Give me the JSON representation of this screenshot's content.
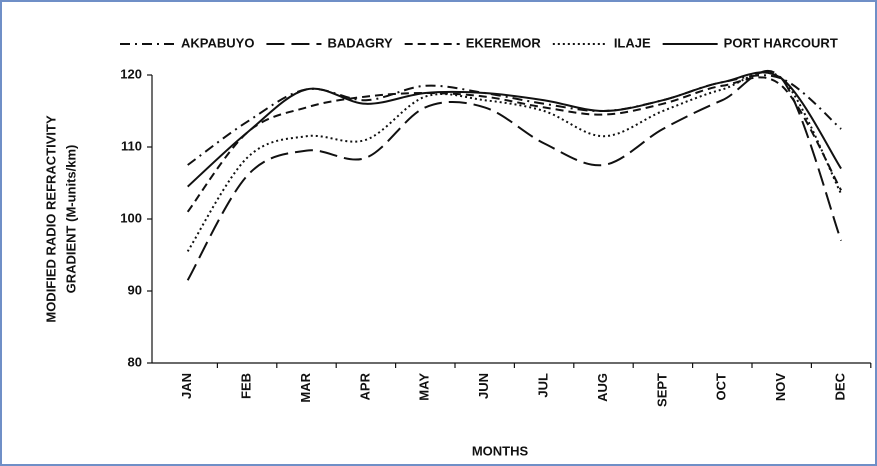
{
  "chart_data": {
    "type": "line",
    "y_label": [
      "MODIFIED  RADIO REFRACTIVITY",
      "GRADIENT  (M-units/km)"
    ],
    "x_label": "MONTHS",
    "categories": [
      "JAN",
      "FEB",
      "MAR",
      "APR",
      "MAY",
      "JUN",
      "JUL",
      "AUG",
      "SEPT",
      "OCT",
      "NOV",
      "DEC"
    ],
    "series": [
      {
        "name": "AKPABUYO",
        "color": "#111111",
        "dash": "10,5,2,5",
        "values": [
          107.5,
          113.5,
          118,
          116.5,
          118.5,
          117.5,
          116,
          115,
          116.5,
          119,
          119.5,
          112.5
        ]
      },
      {
        "name": "BADAGRY",
        "color": "#111111",
        "dash": "18,7",
        "values": [
          91.5,
          106,
          109.5,
          108.5,
          115.5,
          115.5,
          110.5,
          107.5,
          112.5,
          116.5,
          119.5,
          97
        ]
      },
      {
        "name": "EKEREMOR",
        "color": "#111111",
        "dash": "8,5",
        "values": [
          101,
          112,
          115.5,
          117,
          117.5,
          117,
          115.5,
          114.5,
          116,
          118.5,
          118.5,
          104
        ]
      },
      {
        "name": "ILAJE",
        "color": "#111111",
        "dash": "2,3",
        "values": [
          95.5,
          108.5,
          111.5,
          111,
          117,
          116.5,
          115,
          111.5,
          115,
          118,
          119.5,
          103.5
        ]
      },
      {
        "name": "PORT HARCOURT",
        "color": "#111111",
        "dash": "none",
        "values": [
          104.5,
          112,
          118,
          116,
          117.5,
          117.5,
          116.5,
          115,
          116.5,
          119,
          119.5,
          107
        ]
      }
    ],
    "ylim": [
      80,
      120
    ],
    "yticks": [
      80,
      90,
      100,
      110,
      120
    ],
    "grid": false,
    "legend": "top"
  }
}
